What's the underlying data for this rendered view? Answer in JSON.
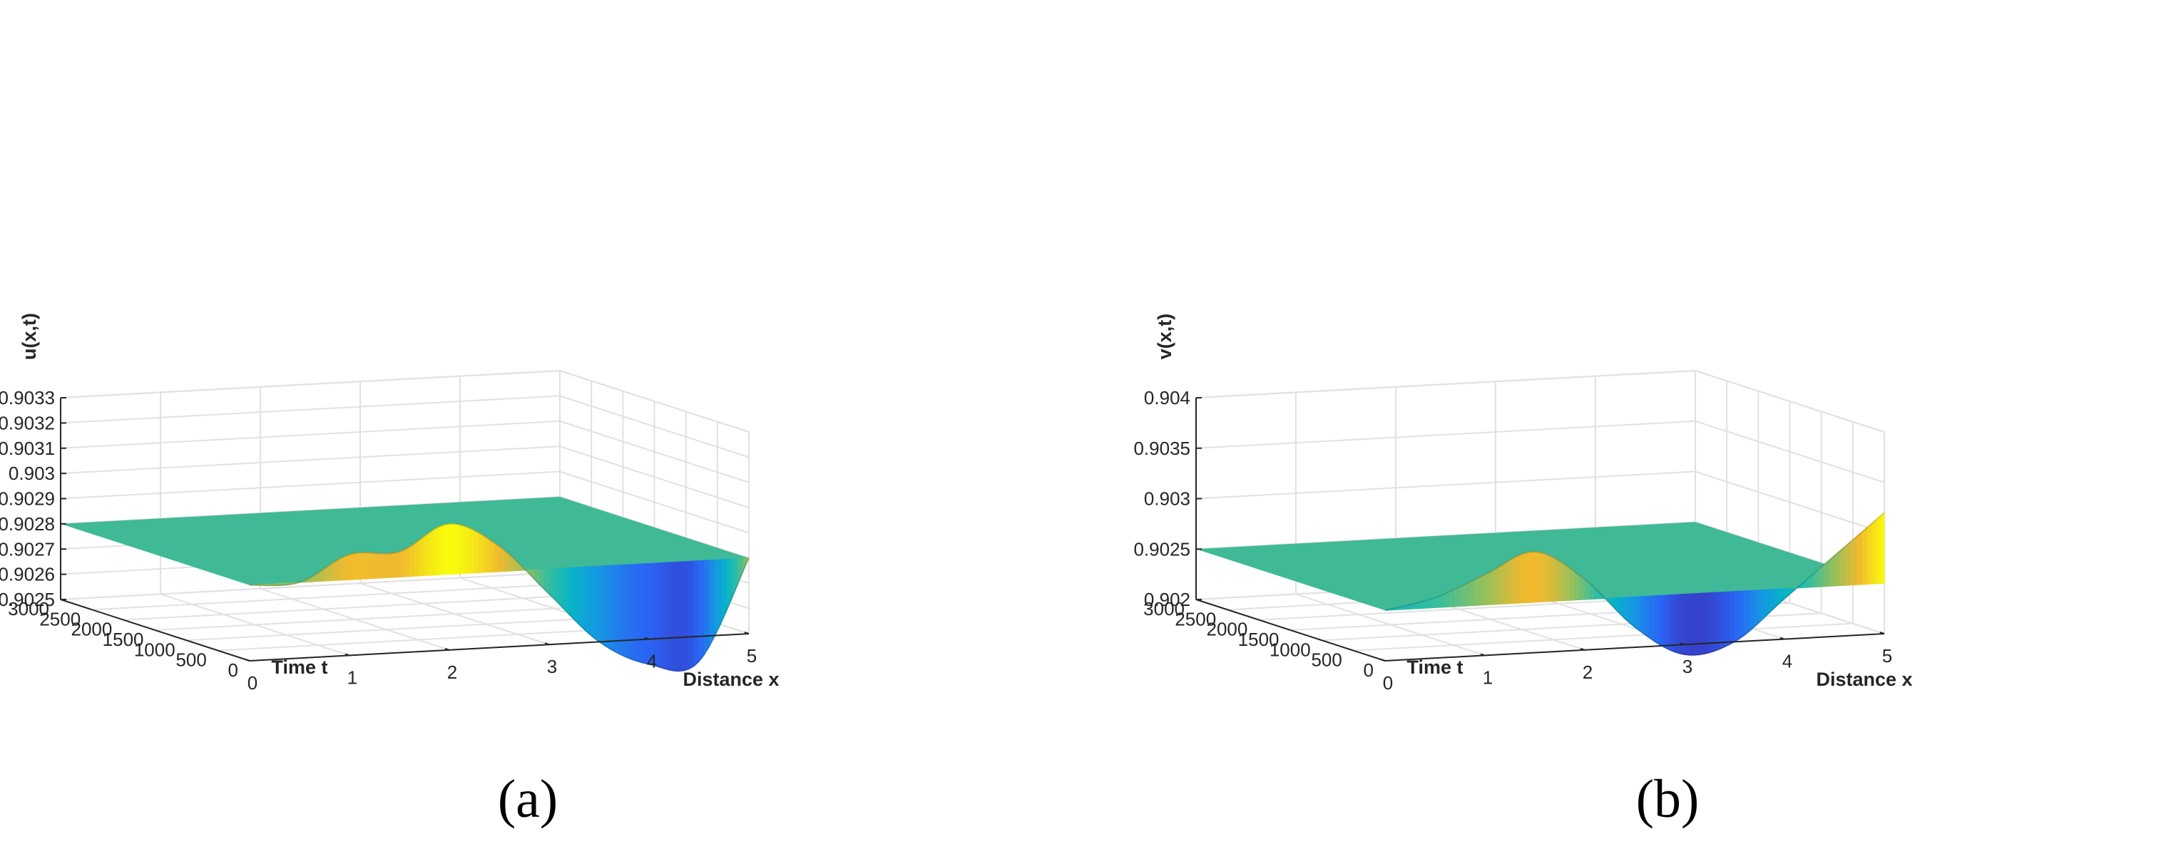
{
  "chart_data": [
    {
      "type": "surface",
      "panel_label": "(a)",
      "xlabel": "Distance x",
      "ylabel": "Time t",
      "zlabel": "u(x,t)",
      "xlim": [
        0,
        5
      ],
      "ylim": [
        0,
        3000
      ],
      "zlim": [
        0.9025,
        0.9033
      ],
      "xticks": [
        "0",
        "1",
        "2",
        "3",
        "4",
        "5"
      ],
      "yticks": [
        "0",
        "500",
        "1000",
        "1500",
        "2000",
        "2500",
        "3000"
      ],
      "zticks": [
        "0.9025",
        "0.9026",
        "0.9027",
        "0.9028",
        "0.9029",
        "0.903",
        "0.9031",
        "0.9032",
        "0.9033"
      ],
      "grid": true,
      "colormap": "parula",
      "data_range": [
        0.9023,
        0.903
      ],
      "rows": [
        {
          "t": 0,
          "x": [
            0,
            0.5,
            1,
            1.5,
            2,
            2.5,
            3,
            3.5,
            4,
            4.5,
            5
          ],
          "z": [
            0.9028,
            0.9028,
            0.9029,
            0.9029,
            0.903,
            0.9029,
            0.9027,
            0.9025,
            0.9024,
            0.9024,
            0.9028
          ]
        }
      ]
    },
    {
      "type": "surface",
      "panel_label": "(b)",
      "xlabel": "Distance x",
      "ylabel": "Time t",
      "zlabel": "v(x,t)",
      "xlim": [
        0,
        5
      ],
      "ylim": [
        0,
        3000
      ],
      "zlim": [
        0.902,
        0.904
      ],
      "xticks": [
        "0",
        "1",
        "2",
        "3",
        "4",
        "5"
      ],
      "yticks": [
        "0",
        "500",
        "1000",
        "1500",
        "2000",
        "2500",
        "3000"
      ],
      "zticks": [
        "0.902",
        "0.9025",
        "0.903",
        "0.9035",
        "0.904"
      ],
      "grid": true,
      "colormap": "parula",
      "data_range": [
        0.9018,
        0.9032
      ],
      "rows": [
        {
          "t": 0,
          "x": [
            0,
            0.5,
            1,
            1.5,
            2,
            2.5,
            3,
            3.5,
            4,
            4.5,
            5
          ],
          "z": [
            0.9025,
            0.9026,
            0.9028,
            0.903,
            0.9027,
            0.9022,
            0.9019,
            0.902,
            0.9024,
            0.9028,
            0.9032
          ]
        }
      ]
    }
  ]
}
